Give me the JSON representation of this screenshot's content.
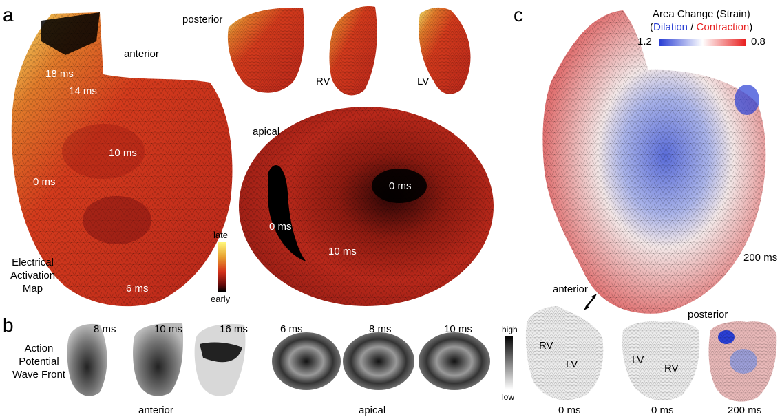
{
  "panels": {
    "a": "a",
    "b": "b",
    "c": "c"
  },
  "panel_a": {
    "view_anterior": "anterior",
    "view_posterior": "posterior",
    "view_rv": "RV",
    "view_lv": "LV",
    "view_apical": "apical",
    "times_anterior": [
      "18 ms",
      "14 ms",
      "10 ms",
      "0 ms",
      "6 ms"
    ],
    "times_apical": [
      "0 ms",
      "0 ms",
      "10 ms"
    ],
    "caption": [
      "Electrical",
      "Activation",
      "Map"
    ],
    "colorbar": {
      "top": "late",
      "bottom": "early",
      "colors": [
        "#fff77a",
        "#e8a030",
        "#d4301a",
        "#8a1010",
        "#000000"
      ]
    }
  },
  "panel_b": {
    "caption": [
      "Action",
      "Potential",
      "Wave Front"
    ],
    "anterior_times": [
      "8 ms",
      "10 ms",
      "16 ms"
    ],
    "apical_times": [
      "6 ms",
      "8 ms",
      "10 ms"
    ],
    "group_anterior": "anterior",
    "group_apical": "apical",
    "colorbar": {
      "top": "high",
      "bottom": "low"
    }
  },
  "panel_c": {
    "title": "Area Change (Strain)",
    "legend": {
      "open": "(",
      "dilation": "Dilation",
      "sep": " / ",
      "contraction": "Contraction",
      "close": ")"
    },
    "range_left": "1.2",
    "range_right": "0.8",
    "time_main": "200 ms",
    "view_anterior": "anterior",
    "view_posterior": "posterior",
    "small_labels": [
      "RV",
      "LV",
      "LV",
      "RV"
    ],
    "small_times": [
      "0 ms",
      "0 ms",
      "200 ms"
    ],
    "colors": {
      "dilation": "#2a3fd4",
      "contraction": "#e82020"
    }
  }
}
